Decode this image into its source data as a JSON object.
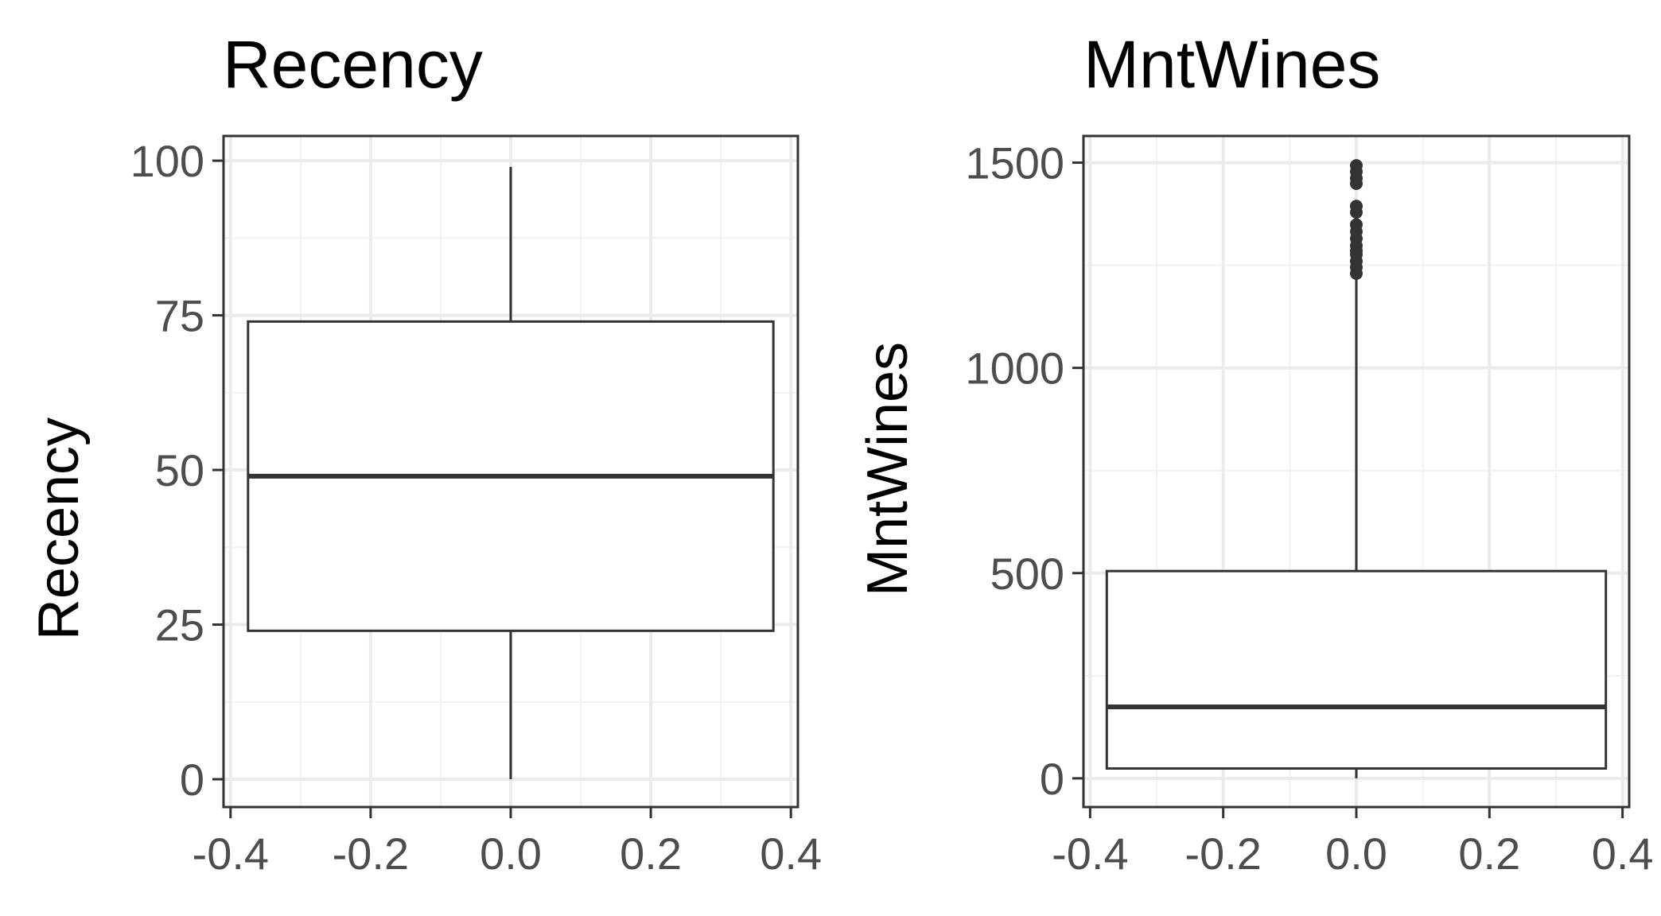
{
  "chart_data": [
    {
      "type": "boxplot",
      "title": "Recency",
      "ylabel": "Recency",
      "xlabel": "",
      "xlim": [
        -0.41,
        0.41
      ],
      "ylim": [
        -4.5,
        104
      ],
      "x_ticks": [
        -0.4,
        -0.2,
        0.0,
        0.2,
        0.4
      ],
      "x_tick_labels": [
        "-0.4",
        "-0.2",
        "0.0",
        "0.2",
        "0.4"
      ],
      "y_ticks": [
        0,
        25,
        50,
        75,
        100
      ],
      "y_tick_labels": [
        "0",
        "25",
        "50",
        "75",
        "100"
      ],
      "grid": true,
      "box": {
        "x_min": -0.375,
        "x_max": 0.375,
        "x_center": 0.0,
        "whisker_low": 0,
        "q1": 24,
        "median": 49,
        "q3": 74,
        "whisker_high": 99
      },
      "outliers": []
    },
    {
      "type": "boxplot",
      "title": "MntWines",
      "ylabel": "MntWines",
      "xlabel": "",
      "xlim": [
        -0.41,
        0.41
      ],
      "ylim": [
        -70,
        1565
      ],
      "x_ticks": [
        -0.4,
        -0.2,
        0.0,
        0.2,
        0.4
      ],
      "x_tick_labels": [
        "-0.4",
        "-0.2",
        "0.0",
        "0.2",
        "0.4"
      ],
      "y_ticks": [
        0,
        500,
        1000,
        1500
      ],
      "y_tick_labels": [
        "0",
        "500",
        "1000",
        "1500"
      ],
      "grid": true,
      "box": {
        "x_min": -0.375,
        "x_max": 0.375,
        "x_center": 0.0,
        "whisker_low": 0,
        "q1": 24,
        "median": 174,
        "q3": 505,
        "whisker_high": 1218
      },
      "outliers": [
        1230,
        1245,
        1260,
        1276,
        1285,
        1298,
        1315,
        1332,
        1349,
        1379,
        1394,
        1449,
        1462,
        1478,
        1493
      ]
    }
  ]
}
